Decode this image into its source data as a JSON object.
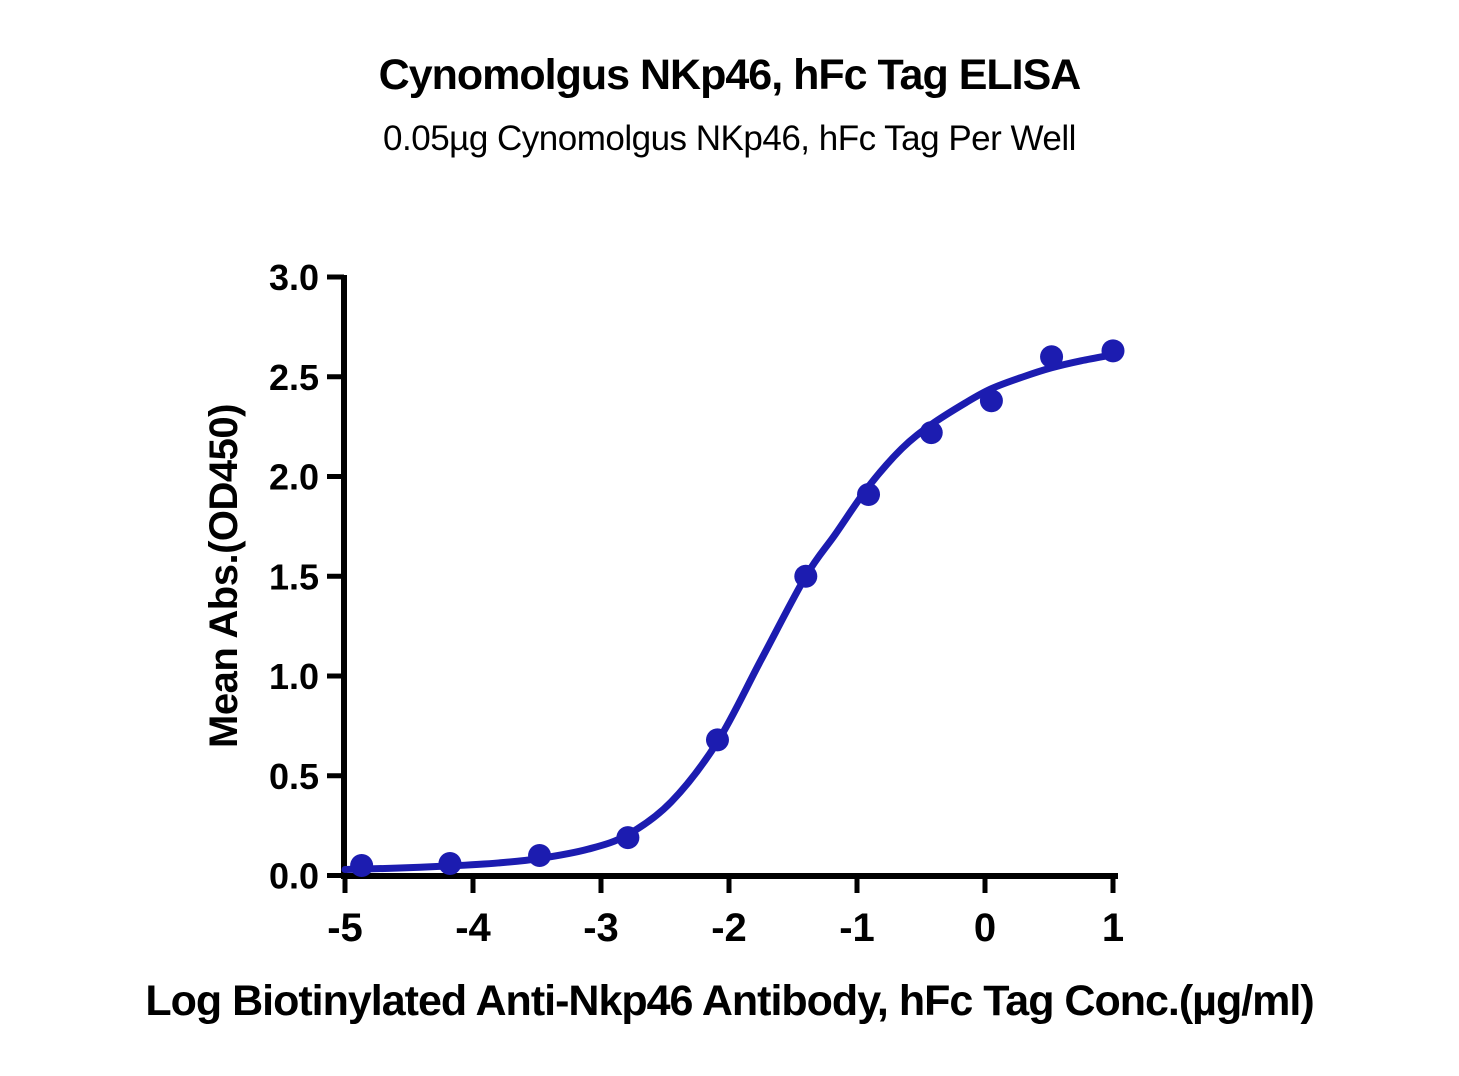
{
  "chart_data": {
    "type": "scatter",
    "title": "Cynomolgus NKp46, hFc Tag ELISA",
    "subtitle": "0.05µg Cynomolgus NKp46, hFc Tag Per Well",
    "xlabel": "Log Biotinylated Anti-Nkp46 Antibody, hFc Tag Conc.(µg/ml)",
    "ylabel": "Mean Abs.(OD450)",
    "xlim": [
      -5,
      1
    ],
    "ylim": [
      0,
      3
    ],
    "x_ticks": [
      -5,
      -4,
      -3,
      -2,
      -1,
      0,
      1
    ],
    "y_ticks": [
      0.0,
      0.5,
      1.0,
      1.5,
      2.0,
      2.5,
      3.0
    ],
    "grid": false,
    "legend": "none",
    "colors": {
      "series_blue": "#1c1cb0",
      "axis_black": "#000000",
      "background": "#ffffff"
    },
    "series": [
      {
        "name": "mean-abs-data-points",
        "type": "scatter",
        "x": [
          -4.87,
          -4.18,
          -3.48,
          -2.79,
          -2.09,
          -1.4,
          -0.91,
          -0.42,
          0.05,
          0.52,
          1.0
        ],
        "y": [
          0.05,
          0.06,
          0.1,
          0.19,
          0.68,
          1.5,
          1.91,
          2.22,
          2.38,
          2.6,
          2.63
        ]
      },
      {
        "name": "sigmoidal-fit-curve",
        "type": "line",
        "points": [
          [
            -5.0,
            0.03
          ],
          [
            -4.6,
            0.037
          ],
          [
            -4.18,
            0.048
          ],
          [
            -3.8,
            0.063
          ],
          [
            -3.48,
            0.085
          ],
          [
            -3.1,
            0.132
          ],
          [
            -2.79,
            0.205
          ],
          [
            -2.45,
            0.37
          ],
          [
            -2.09,
            0.67
          ],
          [
            -1.75,
            1.08
          ],
          [
            -1.4,
            1.5
          ],
          [
            -1.17,
            1.71
          ],
          [
            -0.91,
            1.95
          ],
          [
            -0.65,
            2.14
          ],
          [
            -0.42,
            2.26
          ],
          [
            -0.15,
            2.37
          ],
          [
            0.05,
            2.44
          ],
          [
            0.3,
            2.5
          ],
          [
            0.52,
            2.545
          ],
          [
            0.75,
            2.58
          ],
          [
            1.0,
            2.61
          ]
        ]
      }
    ]
  }
}
